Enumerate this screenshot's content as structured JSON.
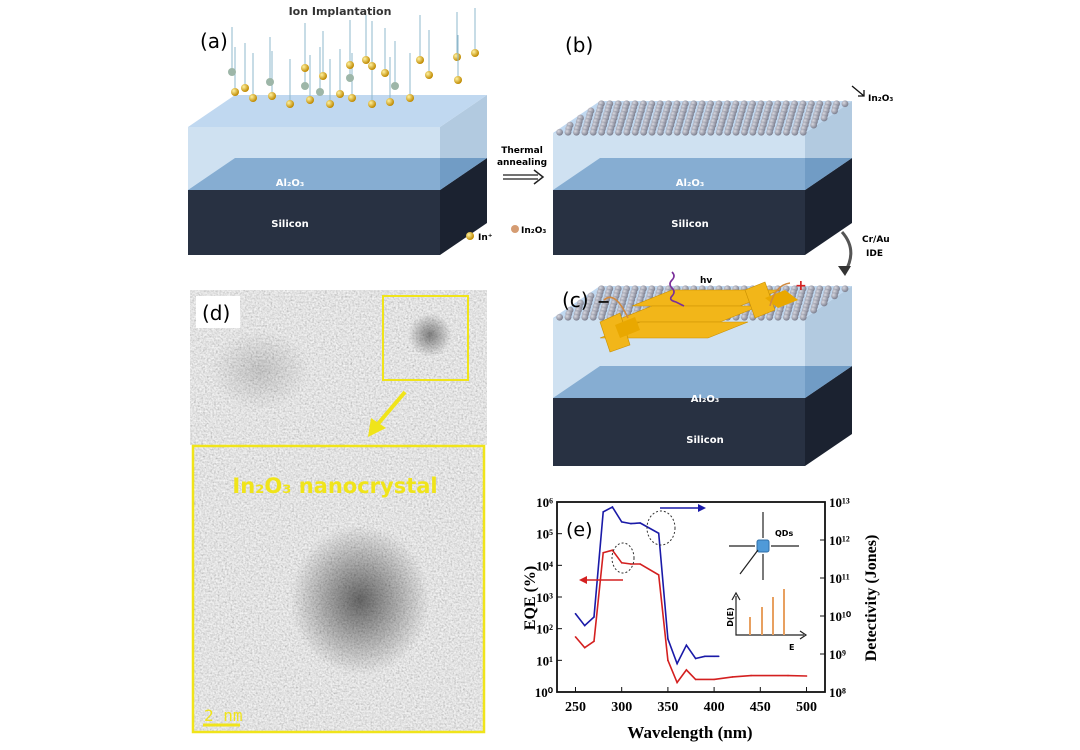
{
  "panels": {
    "a": {
      "tag": "(a)",
      "title": "Ion Implantation",
      "layer_top": "Al₂O₃",
      "layer_bottom": "Silicon",
      "legend_ion": "In⁺"
    },
    "b": {
      "tag": "(b)",
      "layer_top": "Al₂O₃",
      "layer_bottom": "Silicon",
      "legend_particle": "In₂O₃",
      "particle_label": "In₂O₃"
    },
    "step_ab": {
      "line1": "Thermal",
      "line2": "annealing"
    },
    "step_bc": {
      "line1": "Cr/Au",
      "line2": "IDE"
    },
    "c": {
      "tag": "(c)",
      "layer_top": "Al₂O₃",
      "layer_bottom": "Silicon",
      "photon": "hv",
      "minus": "−",
      "plus": "+"
    },
    "d": {
      "tag": "(d)",
      "inset_title": "In₂O₃ nanocrystal",
      "scale_bar": "2 nm"
    },
    "e": {
      "tag": "(e)",
      "inset_qds": "QDs",
      "inset_ylabel": "D(E)",
      "inset_xlabel": "E"
    }
  },
  "colors": {
    "eqe": "#d42020",
    "detectivity": "#1a1aa8",
    "highlight": "#f0e41a",
    "silicon": "#283142",
    "al2o3": "#5d8dbb",
    "top_layer": "#a8c8e6",
    "electrode": "#f2b619",
    "ion": "#d8a510"
  },
  "chart_data": {
    "type": "line",
    "xlabel": "Wavelength (nm)",
    "ylabel": "EQE (%)",
    "y2label": "Detectivity (Jones)",
    "xlim": [
      230,
      520
    ],
    "xticks": [
      250,
      300,
      350,
      400,
      450,
      500
    ],
    "ylim": [
      1,
      1000000
    ],
    "yscale": "log",
    "yticks": [
      "10⁰",
      "10¹",
      "10²",
      "10³",
      "10⁴",
      "10⁵",
      "10⁶"
    ],
    "y2lim": [
      100000000,
      10000000000000
    ],
    "y2scale": "log",
    "y2ticks": [
      "10⁸",
      "10⁹",
      "10¹⁰",
      "10¹¹",
      "10¹²",
      "10¹³"
    ],
    "series": [
      {
        "axis": "left",
        "color": "#d42020",
        "x": [
          250,
          260,
          270,
          280,
          290,
          300,
          310,
          320,
          340,
          350,
          360,
          370,
          380,
          400,
          420,
          440,
          480,
          500
        ],
        "y": [
          55,
          25,
          40,
          25000,
          30000,
          12000,
          11000,
          11000,
          5000,
          10,
          2,
          5,
          2.5,
          2.5,
          3,
          3.3,
          3.3,
          3.2
        ]
      },
      {
        "axis": "right",
        "color": "#1a1aa8",
        "x": [
          250,
          260,
          270,
          280,
          290,
          300,
          310,
          320,
          340,
          350,
          360,
          370,
          380,
          390,
          400,
          405
        ],
        "y": [
          11500000000,
          5600000000,
          9400000000,
          5500000000000,
          7400000000000,
          3000000000000,
          2700000000000,
          2800000000000,
          1500000000000,
          2500000000,
          560000000,
          1700000000,
          760000000,
          870000000,
          870000000,
          870000000
        ]
      }
    ]
  }
}
